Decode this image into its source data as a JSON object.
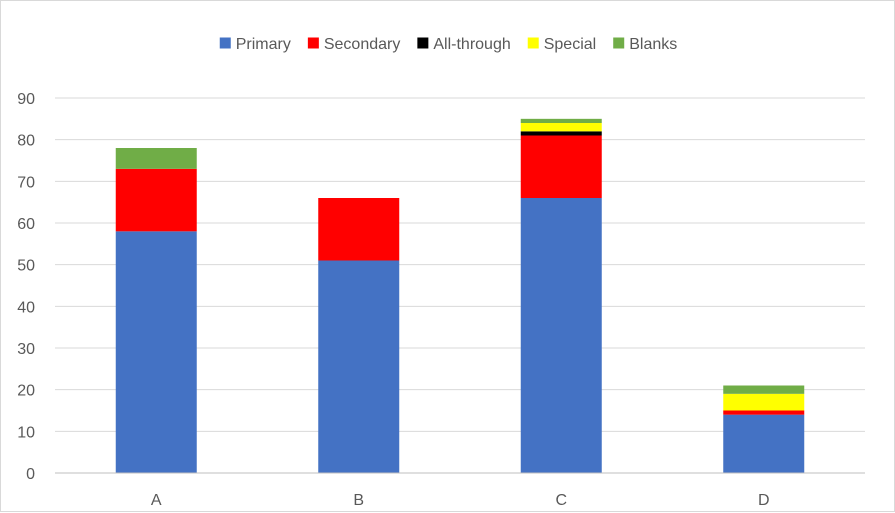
{
  "chart_data": {
    "type": "bar",
    "stacked": true,
    "categories": [
      "A",
      "B",
      "C",
      "D"
    ],
    "series": [
      {
        "name": "Primary",
        "color": "#4472C4",
        "values": [
          58,
          51,
          66,
          14
        ]
      },
      {
        "name": "Secondary",
        "color": "#FF0000",
        "values": [
          15,
          15,
          15,
          1
        ]
      },
      {
        "name": "All-through",
        "color": "#000000",
        "values": [
          0,
          0,
          1,
          0
        ]
      },
      {
        "name": "Special",
        "color": "#FFFF00",
        "values": [
          0,
          0,
          2,
          4
        ]
      },
      {
        "name": "Blanks",
        "color": "#70AD47",
        "values": [
          5,
          0,
          1,
          2
        ]
      }
    ],
    "ylim": [
      0,
      90
    ],
    "yticks": [
      "0",
      "10",
      "20",
      "30",
      "40",
      "50",
      "60",
      "70",
      "80",
      "90"
    ],
    "grid": true,
    "legend_position": "top"
  }
}
